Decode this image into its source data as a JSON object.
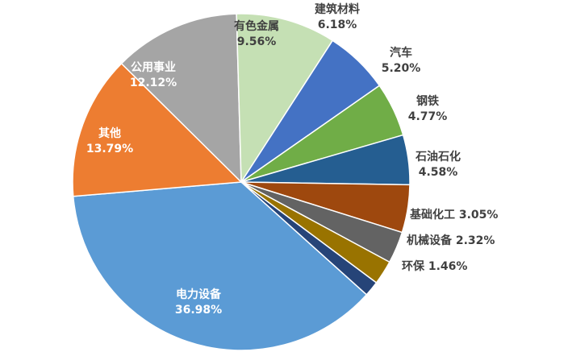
{
  "chart_data": {
    "type": "pie",
    "title": "",
    "slices": [
      {
        "label": "电力设备",
        "value": 36.98,
        "value_text": "36.98%",
        "color": "#5B9BD5"
      },
      {
        "label": "其他",
        "value": 13.79,
        "value_text": "13.79%",
        "color": "#ED7D31"
      },
      {
        "label": "公用事业",
        "value": 12.12,
        "value_text": "12.12%",
        "color": "#A5A5A5"
      },
      {
        "label": "有色金属",
        "value": 9.56,
        "value_text": "9.56%",
        "color": "#C5E0B4"
      },
      {
        "label": "建筑材料",
        "value": 6.18,
        "value_text": "6.18%",
        "color": "#4472C4"
      },
      {
        "label": "汽车",
        "value": 5.2,
        "value_text": "5.20%",
        "color": "#70AD47"
      },
      {
        "label": "钢铁",
        "value": 4.77,
        "value_text": "4.77%",
        "color": "#255E91"
      },
      {
        "label": "石油石化",
        "value": 4.58,
        "value_text": "4.58%",
        "color": "#9E480E"
      },
      {
        "label": "基础化工",
        "value": 3.05,
        "value_text": "3.05%",
        "color": "#636363"
      },
      {
        "label": "机械设备",
        "value": 2.32,
        "value_text": "2.32%",
        "color": "#997300"
      },
      {
        "label": "环保",
        "value": 1.46,
        "value_text": "1.46%",
        "color": "#264478"
      }
    ]
  }
}
